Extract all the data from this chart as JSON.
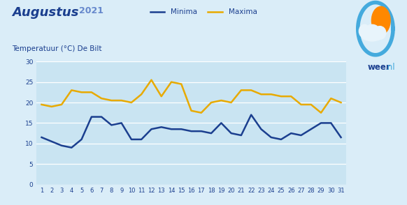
{
  "title_main": "Augustus",
  "title_year": "2021",
  "subtitle": "Temperatuur (°C) De Bilt",
  "days": [
    1,
    2,
    3,
    4,
    5,
    6,
    7,
    8,
    9,
    10,
    11,
    12,
    13,
    14,
    15,
    16,
    17,
    18,
    19,
    20,
    21,
    22,
    23,
    24,
    25,
    26,
    27,
    28,
    29,
    30,
    31
  ],
  "minima": [
    11.5,
    10.5,
    9.5,
    9.0,
    11.0,
    16.5,
    16.5,
    14.5,
    15.0,
    11.0,
    11.0,
    13.5,
    14.0,
    13.5,
    13.5,
    13.0,
    13.0,
    12.5,
    15.0,
    12.5,
    12.0,
    17.0,
    13.5,
    11.5,
    11.0,
    12.5,
    12.0,
    13.5,
    15.0,
    15.0,
    11.5
  ],
  "maxima": [
    19.5,
    19.0,
    19.5,
    23.0,
    22.5,
    22.5,
    21.0,
    20.5,
    20.5,
    20.0,
    22.0,
    25.5,
    21.5,
    25.0,
    24.5,
    18.0,
    17.5,
    20.0,
    20.5,
    20.0,
    23.0,
    23.0,
    22.0,
    22.0,
    21.5,
    21.5,
    19.5,
    19.5,
    17.5,
    21.0,
    20.0
  ],
  "minima_color": "#1b3f8f",
  "maxima_color": "#e8aa00",
  "bg_color": "#c9e4f2",
  "header_bg": "#daedf8",
  "grid_color": "#ffffff",
  "text_color": "#1b3f8f",
  "ylim": [
    0,
    30
  ],
  "yticks": [
    0,
    5,
    10,
    15,
    20,
    25,
    30
  ],
  "legend_minima": "Minima",
  "legend_maxima": "Maxima",
  "line_width": 1.8
}
